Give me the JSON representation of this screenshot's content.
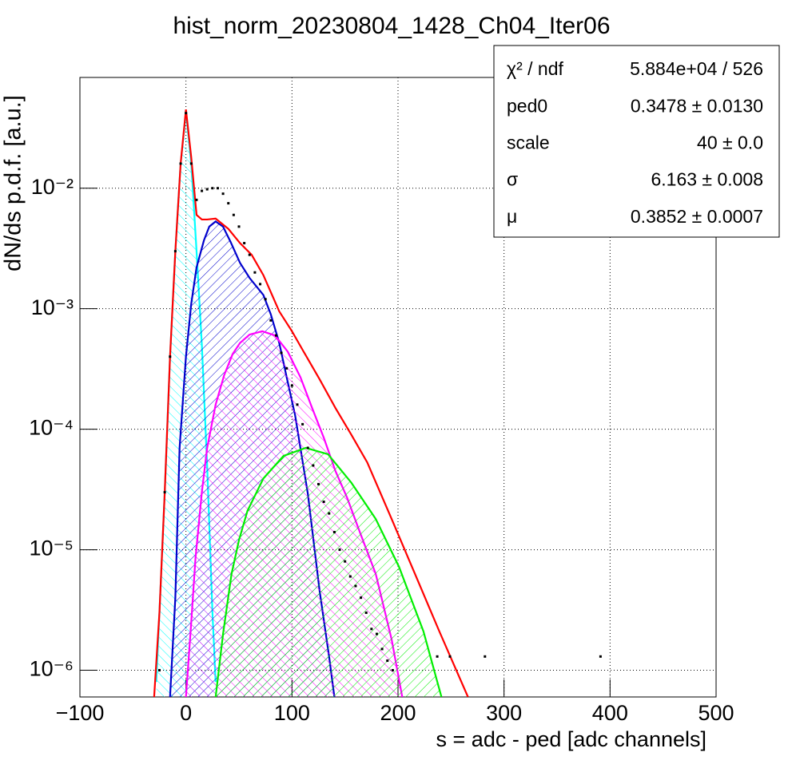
{
  "chart_data": {
    "type": "line",
    "title": "hist_norm_20230804_1428_Ch04_Iter06",
    "x_label": "s = adc - ped [adc channels]",
    "y_label": "dN/ds p.d.f. [a.u.]",
    "xlim": [
      -100,
      500
    ],
    "ylim": [
      6e-07,
      0.083
    ],
    "ylog": true,
    "grid": true,
    "xticks": [
      {
        "value": -100,
        "label": "−100"
      },
      0,
      100,
      200,
      300,
      400,
      500
    ],
    "yticks": [
      {
        "value": 1e-06,
        "label": "10⁻⁶"
      },
      {
        "value": 1e-05,
        "label": "10⁻⁵"
      },
      {
        "value": 0.0001,
        "label": "10⁻⁴"
      },
      {
        "value": 0.001,
        "label": "10⁻³"
      },
      {
        "value": 0.01,
        "label": "10⁻²"
      }
    ],
    "series": [
      {
        "color": "#00ffff",
        "style": "line",
        "fill": "hatch",
        "x": [
          -28,
          -25,
          -20,
          -15,
          -10,
          -5,
          0,
          5,
          10,
          15,
          20,
          25,
          28
        ],
        "values": [
          8e-07,
          3e-06,
          3e-05,
          0.0004,
          0.003,
          0.016,
          0.043,
          0.016,
          0.003,
          0.0005,
          5e-05,
          3e-06,
          8e-07
        ]
      },
      {
        "color": "#0000cc",
        "style": "line",
        "fill": "hatch",
        "x": [
          -15,
          -10,
          -6,
          0,
          5,
          10,
          17,
          22,
          28,
          35,
          42,
          51,
          60,
          73,
          80,
          88,
          95,
          103,
          115,
          126,
          135,
          140
        ],
        "values": [
          6e-07,
          4e-06,
          7e-05,
          0.0004,
          0.0011,
          0.0022,
          0.0037,
          0.0048,
          0.0053,
          0.0048,
          0.0036,
          0.0024,
          0.0018,
          0.0013,
          0.0009,
          0.00052,
          0.00027,
          0.00013,
          2.9e-05,
          4.6e-06,
          1.3e-06,
          6e-07
        ]
      },
      {
        "color": "#ff00ff",
        "style": "line",
        "fill": "hatch",
        "x": [
          0,
          5,
          9,
          15,
          20,
          28,
          36,
          44,
          51,
          60,
          72,
          84,
          96,
          108,
          119,
          130,
          141,
          152,
          164,
          179,
          194,
          204
        ],
        "values": [
          6e-07,
          2.5e-06,
          8.5e-06,
          3e-05,
          7e-05,
          0.00016,
          0.00028,
          0.00042,
          0.00052,
          0.00061,
          0.00065,
          0.0006,
          0.00044,
          0.00027,
          0.00015,
          8.5e-05,
          4.5e-05,
          2.7e-05,
          1.4e-05,
          6.3e-06,
          1.8e-06,
          6e-07
        ]
      },
      {
        "color": "#00ee00",
        "style": "line",
        "fill": "hatch",
        "x": [
          28,
          35,
          43,
          50,
          58,
          73,
          92,
          113,
          134,
          156,
          179,
          201,
          224,
          241
        ],
        "values": [
          6e-07,
          2e-06,
          6.3e-06,
          1.2e-05,
          2.1e-05,
          3.9e-05,
          6e-05,
          7e-05,
          6.2e-05,
          3.6e-05,
          1.8e-05,
          7.2e-06,
          2.1e-06,
          6e-07
        ]
      },
      {
        "color": "#ff0000",
        "style": "line",
        "x": [
          -30,
          -25,
          -20,
          -15,
          -10,
          -5,
          0,
          5,
          10,
          15,
          20,
          28,
          40,
          51,
          62,
          73,
          88,
          100,
          111,
          126,
          141,
          156,
          171,
          194,
          216,
          239,
          255,
          266
        ],
        "values": [
          6e-07,
          3e-06,
          3e-05,
          0.0004,
          0.003,
          0.016,
          0.045,
          0.018,
          0.006,
          0.0055,
          0.0055,
          0.0056,
          0.0046,
          0.0035,
          0.0028,
          0.0019,
          0.00095,
          0.00065,
          0.00044,
          0.00026,
          0.00015,
          9e-05,
          5.3e-05,
          1.8e-05,
          6.3e-06,
          2.1e-06,
          1e-06,
          6e-07
        ]
      },
      {
        "color": "#000000",
        "style": "points",
        "x": [
          -25,
          -20,
          -15,
          -10,
          -5,
          0,
          5,
          10,
          15,
          20,
          25,
          30,
          35,
          40,
          45,
          50,
          55,
          60,
          65,
          70,
          75,
          80,
          85,
          90,
          95,
          100,
          105,
          110,
          115,
          120,
          125,
          130,
          135,
          140,
          145,
          150,
          155,
          160,
          165,
          170,
          175,
          180,
          185,
          190,
          195,
          237,
          249,
          282,
          391
        ],
        "values": [
          1e-06,
          3e-05,
          0.0004,
          0.003,
          0.016,
          0.042,
          0.016,
          0.008,
          0.0095,
          0.0098,
          0.01,
          0.01,
          0.009,
          0.0075,
          0.006,
          0.0048,
          0.0035,
          0.0028,
          0.002,
          0.0016,
          0.0012,
          0.0008,
          0.0006,
          0.00043,
          0.00032,
          0.00023,
          0.00016,
          0.00011,
          7e-05,
          5e-05,
          3.5e-05,
          2.5e-05,
          2e-05,
          1.4e-05,
          1e-05,
          8e-06,
          6e-06,
          5e-06,
          4e-06,
          3e-06,
          2.2e-06,
          2e-06,
          1.5e-06,
          1.2e-06,
          1e-06,
          1.3e-06,
          1.3e-06,
          1.3e-06,
          1.3e-06
        ]
      }
    ],
    "stats": [
      {
        "label": "χ² / ndf",
        "value": "5.884e+04 / 526"
      },
      {
        "label": "ped0",
        "value": "0.3478 ± 0.0130"
      },
      {
        "label": "scale",
        "value": "40 ± 0.0"
      },
      {
        "label": "σ",
        "value": "6.163 ± 0.008"
      },
      {
        "label": "μ",
        "value": "0.3852 ± 0.0007"
      }
    ]
  }
}
